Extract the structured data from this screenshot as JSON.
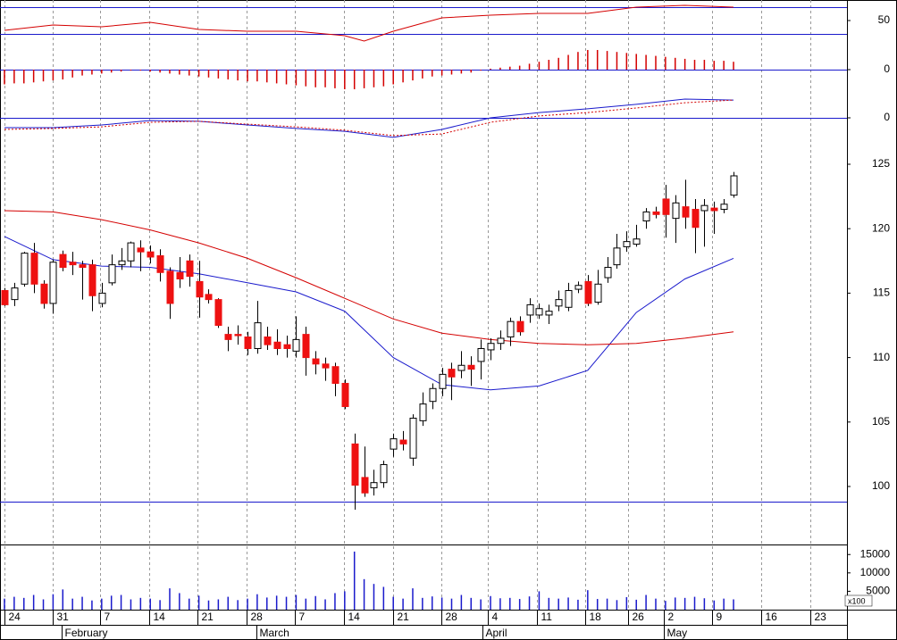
{
  "chart_data": [
    {
      "type": "line",
      "xlim": [
        -0.46,
        86.67
      ],
      "ylim": [
        10,
        80.7
      ],
      "yticks": [
        50
      ],
      "x": [
        0,
        5,
        10,
        15,
        20,
        25,
        30,
        35,
        37,
        40,
        45,
        50,
        55,
        60,
        65,
        70,
        75
      ],
      "hlines": [
        70,
        30
      ],
      "hline_color": "#1a1acc",
      "series": [
        {
          "color": "#d40000",
          "values": [
            35.3,
            43.3,
            40.7,
            47.3,
            36.7,
            34,
            34,
            27.3,
            19.3,
            34,
            54,
            58,
            60.7,
            60.7,
            70,
            72.7,
            70
          ]
        }
      ]
    },
    {
      "type": "bar",
      "xlim": [
        -0.46,
        86.67
      ],
      "ylim": [
        -1,
        1
      ],
      "yticks": [
        0
      ],
      "hlines": [
        0
      ],
      "hline_color": "#1a1acc",
      "color": "#d40000",
      "values": [
        -0.75,
        -0.7,
        -0.7,
        -0.65,
        -0.6,
        -0.55,
        -0.5,
        -0.4,
        -0.3,
        -0.25,
        -0.2,
        -0.15,
        -0.1,
        -0.05,
        -0.05,
        -0.1,
        -0.15,
        -0.2,
        -0.25,
        -0.3,
        -0.35,
        -0.4,
        -0.45,
        -0.5,
        -0.55,
        -0.6,
        -0.6,
        -0.65,
        -0.7,
        -0.75,
        -0.8,
        -0.85,
        -0.9,
        -0.9,
        -0.95,
        -1.0,
        -1.0,
        -0.95,
        -0.9,
        -0.85,
        -0.75,
        -0.65,
        -0.55,
        -0.45,
        -0.35,
        -0.3,
        -0.25,
        -0.2,
        -0.15,
        -0.05,
        0.05,
        0.1,
        0.15,
        0.2,
        0.3,
        0.4,
        0.5,
        0.6,
        0.75,
        0.9,
        1.0,
        1.0,
        0.95,
        0.9,
        0.85,
        0.8,
        0.75,
        0.7,
        0.65,
        0.6,
        0.55,
        0.5,
        0.5,
        0.45,
        0.45,
        0.4
      ]
    },
    {
      "type": "line",
      "xlim": [
        -0.46,
        86.67
      ],
      "ylim": [
        -1.4,
        1.4
      ],
      "yticks": [
        0
      ],
      "x": [
        0,
        5,
        10,
        15,
        20,
        25,
        30,
        35,
        40,
        45,
        50,
        55,
        60,
        65,
        70,
        75
      ],
      "hlines": [
        0
      ],
      "hline_color": "#1a1acc",
      "series": [
        {
          "color": "#1a1acc",
          "values": [
            -0.48,
            -0.48,
            -0.35,
            -0.13,
            -0.17,
            -0.35,
            -0.52,
            -0.66,
            -0.96,
            -0.57,
            0,
            0.26,
            0.44,
            0.66,
            0.92,
            0.87
          ]
        },
        {
          "color": "#d40000",
          "dash": true,
          "values": [
            -0.57,
            -0.52,
            -0.44,
            -0.22,
            -0.17,
            -0.31,
            -0.44,
            -0.61,
            -0.87,
            -0.79,
            -0.22,
            0.09,
            0.26,
            0.48,
            0.74,
            0.87
          ]
        }
      ]
    },
    {
      "type": "candlestick",
      "xlim": [
        -0.46,
        86.67
      ],
      "ylim": [
        95.5,
        128.6
      ],
      "yticks": [
        100,
        105,
        110,
        115,
        120,
        125
      ],
      "up_color": "#ffffff",
      "down_color": "#ee1111",
      "hlines": [
        98.8
      ],
      "hline_color": "#1a1acc",
      "open": [
        115.2,
        114.5,
        115.7,
        118.1,
        115.7,
        114.2,
        118,
        117.4,
        117.2,
        117.2,
        114.2,
        115.8,
        117.2,
        117.5,
        118.5,
        118.2,
        117.9,
        116.7,
        116.6,
        117.5,
        115.9,
        114.9,
        114.5,
        111.8,
        111.8,
        111.6,
        110.7,
        111.6,
        111.2,
        111,
        110.5,
        111.8,
        109.9,
        109.5,
        109.3,
        108,
        103.3,
        100.7,
        99.9,
        100.3,
        102.9,
        103.6,
        102.2,
        105.1,
        106.6,
        107.6,
        109.1,
        109,
        109.4,
        109.7,
        110.6,
        111.1,
        111.6,
        112.8,
        113.3,
        113.3,
        113.3,
        114,
        113.9,
        115.3,
        115.9,
        114.3,
        116.2,
        117.2,
        118.6,
        118.8,
        120.6,
        121.3,
        122.3,
        120.8,
        121.7,
        121.5,
        121.4,
        121.6,
        121.5,
        122.6
      ],
      "high": [
        115.4,
        115.8,
        118.2,
        118.9,
        116,
        117.6,
        118.3,
        118.2,
        117.5,
        117.6,
        115.8,
        118,
        118.5,
        119,
        119.1,
        118.7,
        118.4,
        117,
        117.8,
        118,
        117.5,
        115.3,
        114.6,
        112.4,
        112.5,
        112,
        114.4,
        112.4,
        112.2,
        111.7,
        113.2,
        112.4,
        110.5,
        110,
        109.6,
        108.3,
        104.1,
        103.1,
        101.3,
        102,
        104.1,
        104.3,
        105.6,
        107.3,
        108,
        109.2,
        109.6,
        110.5,
        110.1,
        111.4,
        111.5,
        112.1,
        113.1,
        113.2,
        114.6,
        114.2,
        114.1,
        115.2,
        115.8,
        115.9,
        116.4,
        116.8,
        117.8,
        119.6,
        119.8,
        120.3,
        121.6,
        121.7,
        123.4,
        122.6,
        123.8,
        122.3,
        122.3,
        122.1,
        122.3,
        124.4
      ],
      "low": [
        114,
        114,
        115.5,
        115,
        113.8,
        113.4,
        116.7,
        116.4,
        114.5,
        113.6,
        113.9,
        115.6,
        116.8,
        117,
        116.7,
        117.3,
        115.9,
        113,
        115.4,
        115.5,
        113.1,
        114.2,
        112.3,
        110.5,
        111,
        110.2,
        110.3,
        110.6,
        110.2,
        110,
        110,
        108.6,
        108.7,
        108.2,
        107,
        106,
        98.2,
        99.2,
        99.3,
        99.9,
        102.3,
        102.8,
        101.6,
        104.7,
        106,
        107,
        106.7,
        108.4,
        107.8,
        108.3,
        109.8,
        110.6,
        110.9,
        111.7,
        112.7,
        113,
        112.6,
        113.6,
        113.6,
        115,
        114,
        114.1,
        115.8,
        116.9,
        118.2,
        118.6,
        120,
        120.8,
        119.3,
        118.9,
        120,
        118.1,
        118.6,
        119.6,
        121.2,
        122.4
      ],
      "close": [
        114.1,
        115.4,
        118.1,
        115.7,
        114.2,
        117.4,
        117,
        117.2,
        117,
        114.8,
        115,
        117.2,
        117.5,
        118.9,
        118.2,
        117.8,
        116.6,
        114.2,
        116.1,
        116.3,
        114.7,
        114.5,
        112.5,
        111.4,
        111.7,
        110.7,
        112.7,
        111,
        110.7,
        110.7,
        111.4,
        110,
        109.5,
        109.2,
        108,
        106.2,
        100.1,
        99.5,
        100.3,
        101.7,
        103.7,
        103.3,
        105.3,
        106.4,
        107.6,
        108.7,
        108.5,
        109.4,
        109.1,
        110.7,
        111.1,
        111.5,
        112.8,
        112,
        114.1,
        113.8,
        113.6,
        114.5,
        115.2,
        115.6,
        114.2,
        115.7,
        117,
        118.5,
        119,
        119.2,
        121.3,
        121.1,
        121.1,
        122,
        120.9,
        120.1,
        121.8,
        121.4,
        121.9,
        124.1
      ],
      "series": [
        {
          "color": "#1a1acc",
          "x": [
            0,
            5,
            10,
            15,
            20,
            25,
            30,
            35,
            40,
            45,
            50,
            55,
            60,
            65,
            70,
            75
          ],
          "values": [
            119.4,
            117.6,
            117.1,
            117,
            116.5,
            115.8,
            115.1,
            113.6,
            110,
            107.9,
            107.5,
            107.8,
            109,
            113.5,
            116.1,
            117.7
          ]
        },
        {
          "color": "#d40000",
          "x": [
            0,
            5,
            10,
            15,
            20,
            25,
            30,
            35,
            40,
            45,
            50,
            55,
            60,
            65,
            70,
            75
          ],
          "values": [
            121.4,
            121.3,
            120.7,
            119.9,
            118.9,
            117.7,
            116.2,
            114.6,
            113,
            111.9,
            111.4,
            111.1,
            111,
            111.1,
            111.5,
            112
          ]
        }
      ]
    },
    {
      "type": "bar",
      "xlim": [
        -0.46,
        86.67
      ],
      "ylim": [
        0,
        17000
      ],
      "yticks": [
        5000,
        10000,
        15000
      ],
      "color": "#1a1acc",
      "volume_unit": "x100",
      "values": [
        3000,
        3500,
        3200,
        4000,
        2800,
        4200,
        5500,
        3000,
        3500,
        2500,
        3000,
        3800,
        4000,
        2800,
        3200,
        3000,
        2600,
        5800,
        4500,
        3000,
        3800,
        2500,
        2800,
        3500,
        2600,
        3000,
        4200,
        3300,
        3800,
        3500,
        4000,
        3000,
        3700,
        2800,
        4500,
        5000,
        15800,
        8300,
        7000,
        6200,
        3500,
        3000,
        5800,
        3200,
        3600,
        3300,
        3000,
        4000,
        3200,
        2800,
        3700,
        3100,
        3200,
        2900,
        3600,
        5000,
        3200,
        3000,
        3300,
        2700,
        5300,
        2900,
        3000,
        2600,
        3400,
        2700,
        4000,
        3000,
        2400,
        3300,
        3200,
        3500,
        3100,
        2500,
        3000,
        2800
      ],
      "xticks": [
        {
          "value": 0,
          "label": "24"
        },
        {
          "value": 4.96,
          "label": "31"
        },
        {
          "value": 9.83,
          "label": "7"
        },
        {
          "value": 14.89,
          "label": "14"
        },
        {
          "value": 19.85,
          "label": "21"
        },
        {
          "value": 24.9,
          "label": "28"
        },
        {
          "value": 29.87,
          "label": "7"
        },
        {
          "value": 34.93,
          "label": "14"
        },
        {
          "value": 39.98,
          "label": "21"
        },
        {
          "value": 44.94,
          "label": "28"
        },
        {
          "value": 49.72,
          "label": "4"
        },
        {
          "value": 54.78,
          "label": "11"
        },
        {
          "value": 59.74,
          "label": "18"
        },
        {
          "value": 64.15,
          "label": "26"
        },
        {
          "value": 67.83,
          "label": "2"
        },
        {
          "value": 72.79,
          "label": "9"
        },
        {
          "value": 77.85,
          "label": "16"
        },
        {
          "value": 82.9,
          "label": "23"
        }
      ],
      "month_ticks": [
        {
          "value": 5.9,
          "label": "February"
        },
        {
          "value": 25.9,
          "label": "March"
        },
        {
          "value": 49.2,
          "label": "April"
        },
        {
          "value": 67.8,
          "label": "May"
        }
      ]
    }
  ]
}
